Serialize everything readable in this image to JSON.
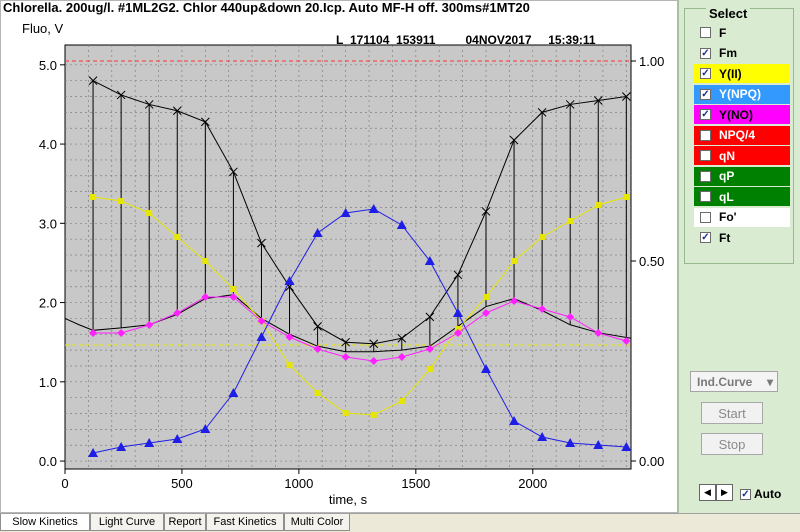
{
  "header": {
    "title": "Chlorella. 200ug/l. #1ML2G2. Chlor  440up&down  20.Icp. Auto MF-H  off. 300ms#1MT20",
    "file_id": "L_171104_153911",
    "date": "04NOV2017",
    "time": "15:39:11"
  },
  "chart_data": {
    "type": "line",
    "ylabel": "Fluo, V",
    "xlabel": "time, s",
    "xlim": [
      0,
      2420
    ],
    "ylim": [
      -0.1,
      5.25
    ],
    "y2lim": [
      -0.02,
      1.04
    ],
    "x_ticks": [
      0,
      500,
      1000,
      1500,
      2000
    ],
    "y_ticks": [
      "0.0",
      "1.0",
      "2.0",
      "3.0",
      "4.0",
      "5.0"
    ],
    "y2_ticks": [
      "0.00",
      "0.50",
      "1.00"
    ],
    "grid": true,
    "ref_lines": [
      {
        "axis": "y2",
        "value": 1.0,
        "color": "#ff3333"
      },
      {
        "axis": "y2",
        "value": 0.29,
        "color": "#e6e600"
      }
    ],
    "series": [
      {
        "name": "Fm",
        "axis": "y",
        "color": "#000000",
        "marker": "x",
        "x": [
          120,
          240,
          360,
          480,
          600,
          720,
          840,
          960,
          1080,
          1200,
          1320,
          1440,
          1560,
          1680,
          1800,
          1920,
          2040,
          2160,
          2280,
          2400
        ],
        "y": [
          4.8,
          4.62,
          4.5,
          4.42,
          4.28,
          3.65,
          2.75,
          2.2,
          1.7,
          1.5,
          1.48,
          1.55,
          1.82,
          2.35,
          3.15,
          4.05,
          4.4,
          4.5,
          4.55,
          4.6
        ]
      },
      {
        "name": "Ft",
        "axis": "y",
        "color": "#000000",
        "marker": "none",
        "x": [
          0,
          60,
          120,
          240,
          360,
          480,
          600,
          720,
          840,
          960,
          1080,
          1200,
          1320,
          1440,
          1560,
          1680,
          1800,
          1920,
          2040,
          2160,
          2280,
          2420
        ],
        "y": [
          1.8,
          1.72,
          1.65,
          1.68,
          1.72,
          1.85,
          2.05,
          2.1,
          1.8,
          1.6,
          1.45,
          1.38,
          1.38,
          1.4,
          1.45,
          1.7,
          1.95,
          2.05,
          1.9,
          1.72,
          1.62,
          1.55
        ]
      },
      {
        "name": "Y(II)",
        "axis": "y2",
        "color": "#e6e600",
        "marker": "square",
        "x": [
          120,
          240,
          360,
          480,
          600,
          720,
          840,
          960,
          1080,
          1200,
          1320,
          1440,
          1560,
          1680,
          1800,
          1920,
          2040,
          2160,
          2280,
          2400
        ],
        "y": [
          0.66,
          0.65,
          0.62,
          0.56,
          0.5,
          0.43,
          0.35,
          0.24,
          0.17,
          0.12,
          0.115,
          0.15,
          0.23,
          0.33,
          0.41,
          0.5,
          0.56,
          0.6,
          0.64,
          0.66
        ]
      },
      {
        "name": "Y(NPQ)",
        "axis": "y2",
        "color": "#1e1ee6",
        "marker": "triangle",
        "x": [
          120,
          240,
          360,
          480,
          600,
          720,
          840,
          960,
          1080,
          1200,
          1320,
          1440,
          1560,
          1680,
          1800,
          1920,
          2040,
          2160,
          2280,
          2400
        ],
        "y": [
          0.02,
          0.035,
          0.045,
          0.055,
          0.08,
          0.17,
          0.31,
          0.45,
          0.57,
          0.62,
          0.63,
          0.59,
          0.5,
          0.37,
          0.23,
          0.1,
          0.06,
          0.045,
          0.04,
          0.035
        ]
      },
      {
        "name": "Y(NO)",
        "axis": "y2",
        "color": "#ff22ff",
        "marker": "diamond",
        "x": [
          120,
          240,
          360,
          480,
          600,
          720,
          840,
          960,
          1080,
          1200,
          1320,
          1440,
          1560,
          1680,
          1800,
          1920,
          2040,
          2160,
          2280,
          2400
        ],
        "y": [
          0.32,
          0.32,
          0.34,
          0.37,
          0.41,
          0.41,
          0.35,
          0.31,
          0.28,
          0.26,
          0.25,
          0.26,
          0.28,
          0.32,
          0.37,
          0.4,
          0.38,
          0.36,
          0.32,
          0.3
        ]
      }
    ]
  },
  "select_panel": {
    "title": "Select",
    "items": [
      {
        "label": "F",
        "checked": false,
        "bg": "#d9ecd2",
        "fg": "#000000"
      },
      {
        "label": "Fm",
        "checked": true,
        "bg": "#d9ecd2",
        "fg": "#000000"
      },
      {
        "label": "Y(II)",
        "checked": true,
        "bg": "#ffff00",
        "fg": "#000000"
      },
      {
        "label": "Y(NPQ)",
        "checked": true,
        "bg": "#3399ff",
        "fg": "#ffffff"
      },
      {
        "label": "Y(NO)",
        "checked": true,
        "bg": "#ff00ff",
        "fg": "#000000"
      },
      {
        "label": "NPQ/4",
        "checked": false,
        "bg": "#ff0000",
        "fg": "#ffffff"
      },
      {
        "label": "qN",
        "checked": false,
        "bg": "#ff0000",
        "fg": "#ffffff"
      },
      {
        "label": "qP",
        "checked": false,
        "bg": "#008000",
        "fg": "#ffffff"
      },
      {
        "label": "qL",
        "checked": false,
        "bg": "#008000",
        "fg": "#ffffff"
      },
      {
        "label": "Fo'",
        "checked": false,
        "bg": "#ffffff",
        "fg": "#000000"
      },
      {
        "label": "Ft",
        "checked": true,
        "bg": "#d9ecd2",
        "fg": "#000000"
      }
    ]
  },
  "controls": {
    "ind_curve_label": "Ind.Curve",
    "start_label": "Start",
    "stop_label": "Stop",
    "auto_label": "Auto",
    "auto_checked": true
  },
  "tabs": [
    {
      "label": "Slow Kinetics",
      "active": true
    },
    {
      "label": "Light Curve",
      "active": false
    },
    {
      "label": "Report",
      "active": false
    },
    {
      "label": "Fast Kinetics",
      "active": false
    },
    {
      "label": "Multi Color",
      "active": false
    }
  ]
}
